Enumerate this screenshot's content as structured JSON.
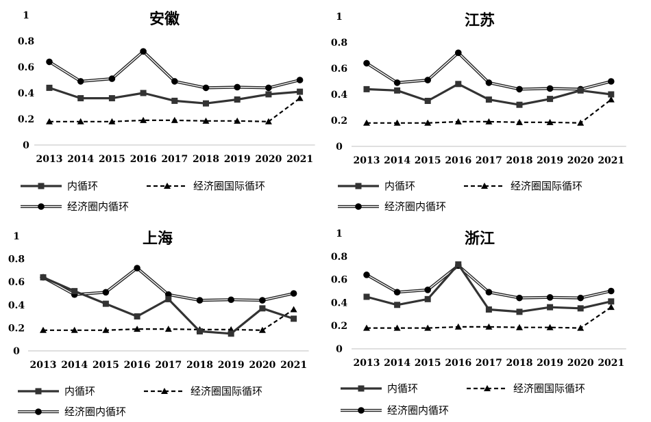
{
  "chart_data": [
    {
      "type": "line",
      "title": "安徽",
      "categories": [
        "2013",
        "2014",
        "2015",
        "2016",
        "2017",
        "2018",
        "2019",
        "2020",
        "2021"
      ],
      "ylim": [
        0,
        1
      ],
      "yticks": [
        "0",
        "0.2",
        "0.4",
        "0.6",
        "0.8",
        "1"
      ],
      "grid": false,
      "legend_position": "bottom",
      "series": [
        {
          "name": "内循环",
          "values": [
            0.44,
            0.36,
            0.36,
            0.4,
            0.34,
            0.32,
            0.35,
            0.39,
            0.41
          ]
        },
        {
          "name": "经济圈国际循环",
          "values": [
            0.18,
            0.18,
            0.18,
            0.19,
            0.19,
            0.185,
            0.185,
            0.18,
            0.36
          ]
        },
        {
          "name": "经济圈内循环",
          "values": [
            0.64,
            0.49,
            0.51,
            0.72,
            0.49,
            0.44,
            0.445,
            0.44,
            0.5
          ]
        }
      ]
    },
    {
      "type": "line",
      "title": "江苏",
      "categories": [
        "2013",
        "2014",
        "2015",
        "2016",
        "2017",
        "2018",
        "2019",
        "2020",
        "2021"
      ],
      "ylim": [
        0,
        1
      ],
      "yticks": [
        "0",
        "0.2",
        "0.4",
        "0.6",
        "0.8",
        "1"
      ],
      "grid": false,
      "legend_position": "bottom",
      "series": [
        {
          "name": "内循环",
          "values": [
            0.44,
            0.43,
            0.35,
            0.48,
            0.36,
            0.32,
            0.365,
            0.43,
            0.4
          ]
        },
        {
          "name": "经济圈国际循环",
          "values": [
            0.18,
            0.18,
            0.18,
            0.19,
            0.19,
            0.185,
            0.185,
            0.18,
            0.36
          ]
        },
        {
          "name": "经济圈内循环",
          "values": [
            0.64,
            0.49,
            0.51,
            0.72,
            0.49,
            0.44,
            0.445,
            0.44,
            0.5
          ]
        }
      ]
    },
    {
      "type": "line",
      "title": "上海",
      "categories": [
        "2013",
        "2014",
        "2015",
        "2016",
        "2017",
        "2018",
        "2019",
        "2020",
        "2021"
      ],
      "ylim": [
        0,
        1
      ],
      "yticks": [
        "0",
        "0.2",
        "0.4",
        "0.6",
        "0.8",
        "1"
      ],
      "grid": false,
      "legend_position": "bottom",
      "series": [
        {
          "name": "内循环",
          "values": [
            0.64,
            0.52,
            0.41,
            0.3,
            0.45,
            0.17,
            0.15,
            0.37,
            0.28
          ]
        },
        {
          "name": "经济圈国际循环",
          "values": [
            0.18,
            0.18,
            0.18,
            0.19,
            0.19,
            0.185,
            0.185,
            0.18,
            0.36
          ]
        },
        {
          "name": "经济圈内循环",
          "values": [
            0.64,
            0.49,
            0.51,
            0.72,
            0.49,
            0.44,
            0.445,
            0.44,
            0.5
          ]
        }
      ]
    },
    {
      "type": "line",
      "title": "浙江",
      "categories": [
        "2013",
        "2014",
        "2015",
        "2016",
        "2017",
        "2018",
        "2019",
        "2020",
        "2021"
      ],
      "ylim": [
        0,
        1
      ],
      "yticks": [
        "0",
        "0.2",
        "0.4",
        "0.6",
        "0.8",
        "1"
      ],
      "grid": false,
      "legend_position": "bottom",
      "series": [
        {
          "name": "内循环",
          "values": [
            0.45,
            0.38,
            0.43,
            0.73,
            0.34,
            0.32,
            0.36,
            0.35,
            0.41
          ]
        },
        {
          "name": "经济圈国际循环",
          "values": [
            0.18,
            0.18,
            0.18,
            0.19,
            0.19,
            0.185,
            0.185,
            0.18,
            0.36
          ]
        },
        {
          "name": "经济圈内循环",
          "values": [
            0.64,
            0.49,
            0.51,
            0.72,
            0.49,
            0.44,
            0.445,
            0.44,
            0.5
          ]
        }
      ]
    }
  ]
}
